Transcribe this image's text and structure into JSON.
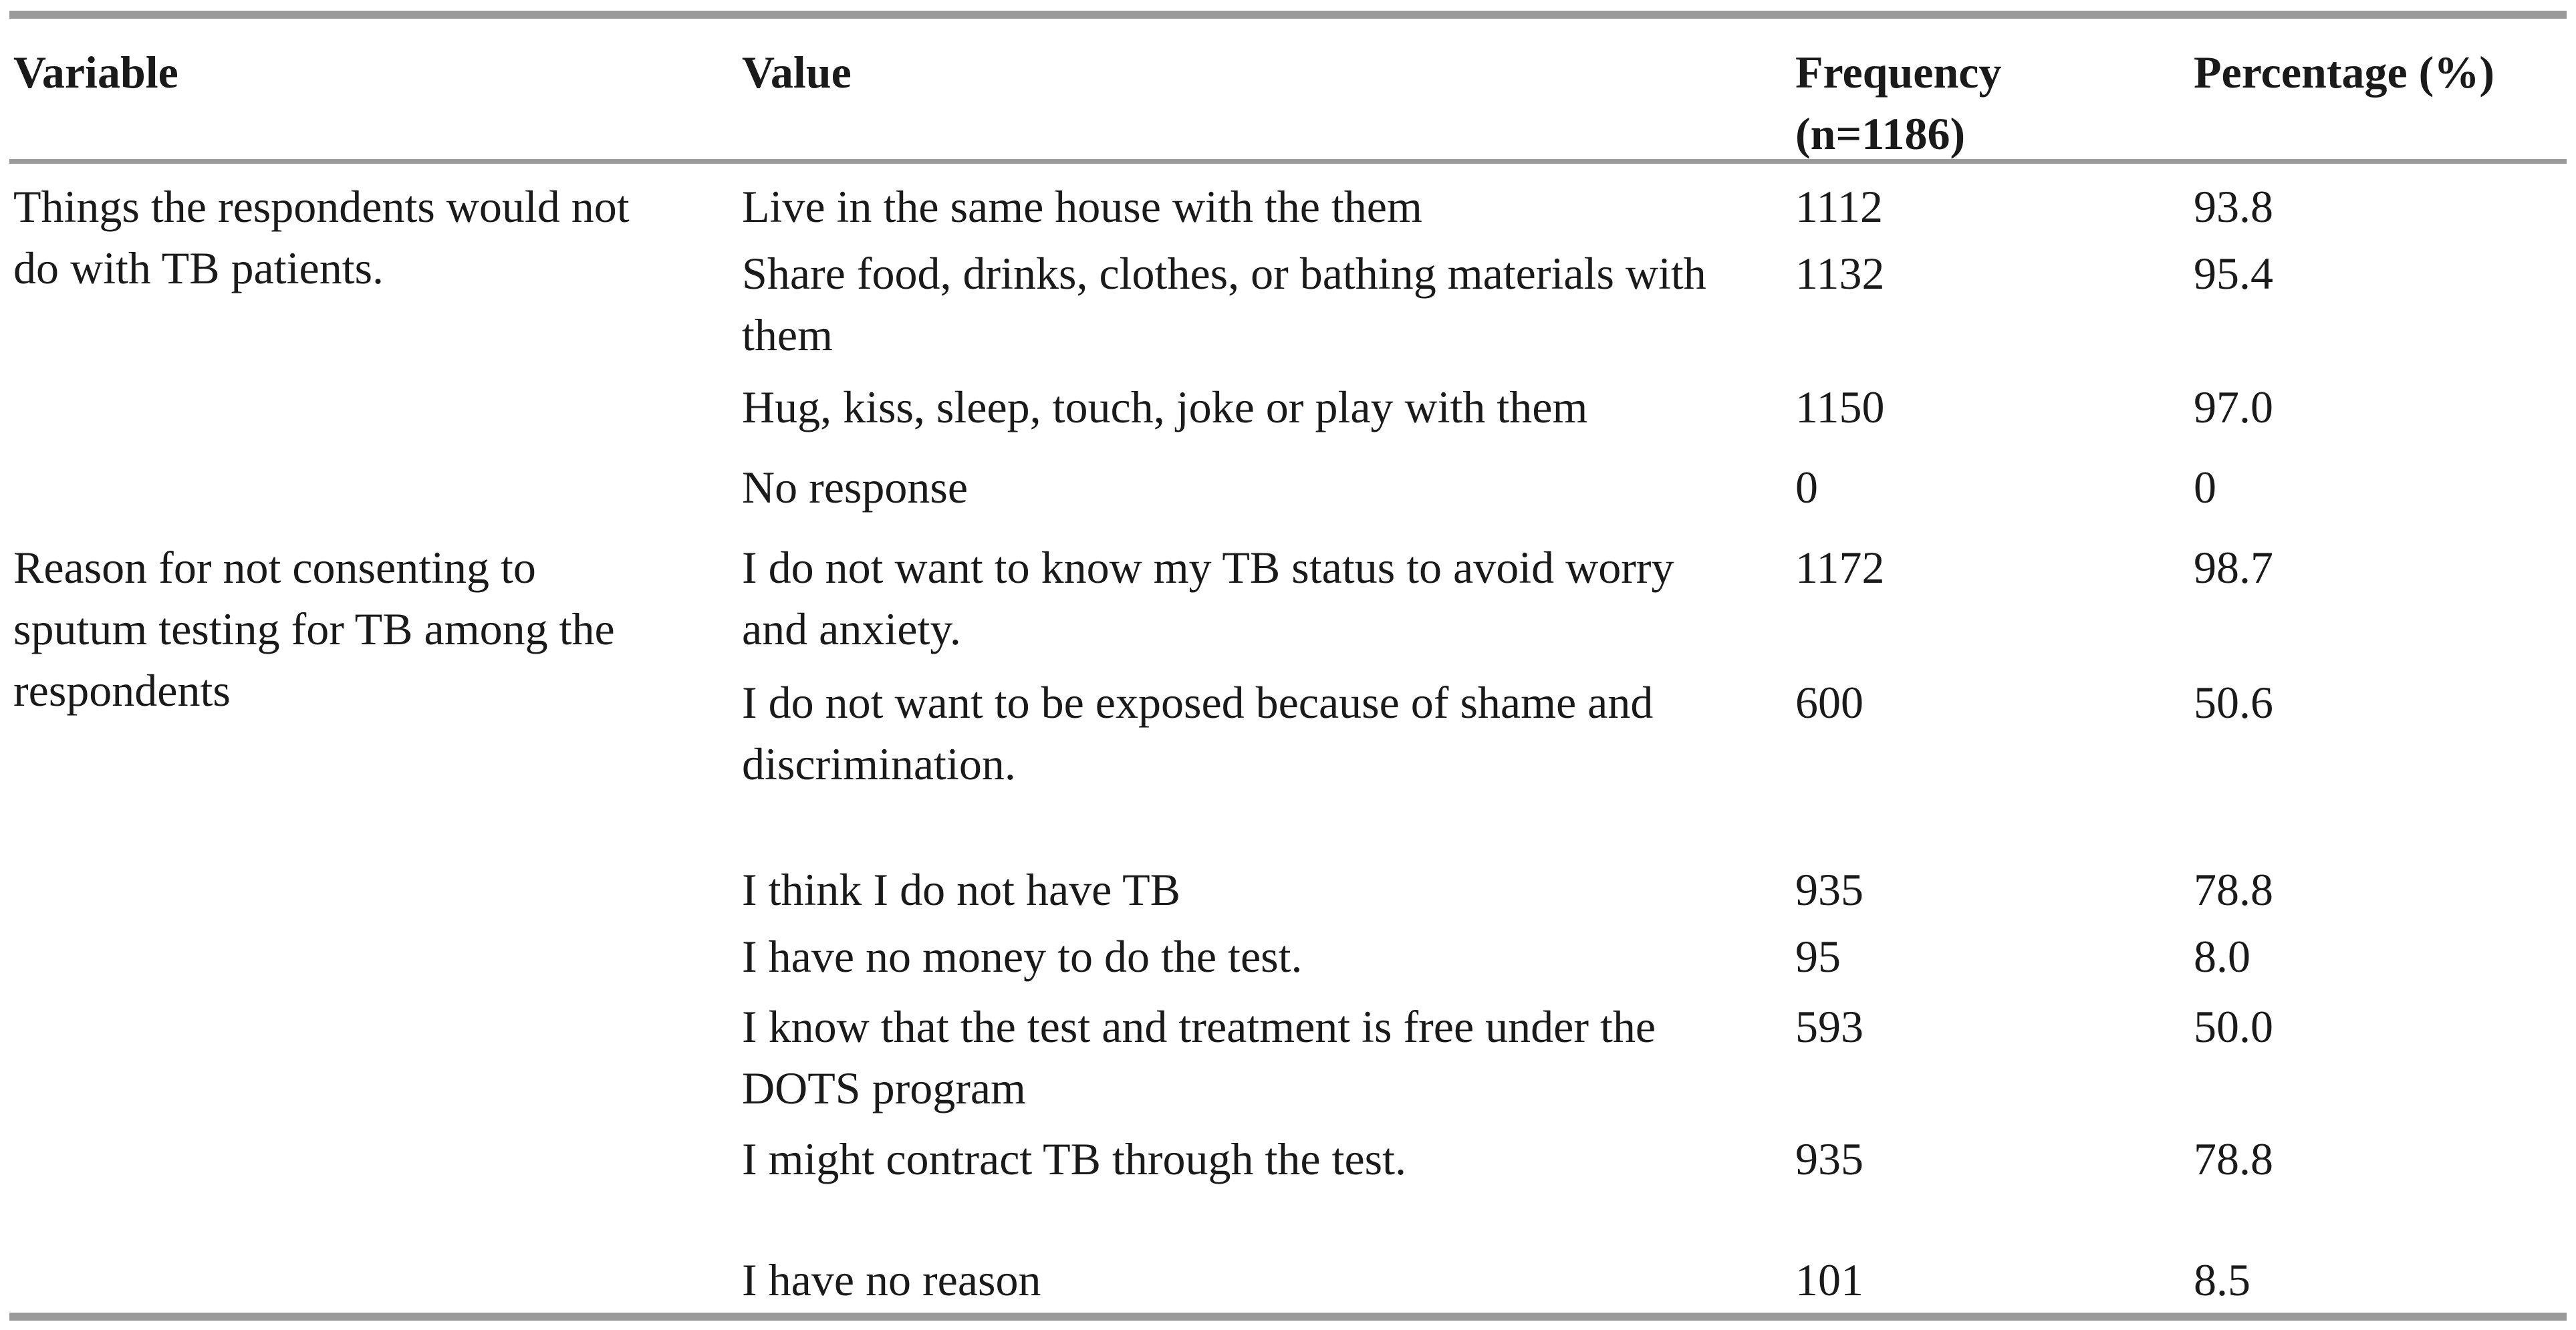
{
  "table": {
    "headers": {
      "variable": "Variable",
      "value": "Value",
      "frequency_line1": "Frequency",
      "frequency_line2": "(n=1186)",
      "percentage": "Percentage (%)"
    },
    "groups": [
      {
        "variable_lines": [
          "Things the respondents would not",
          "do with TB patients."
        ]
      },
      {
        "variable_lines": [
          "Reason for not consenting to",
          "sputum testing for TB among the",
          "respondents"
        ]
      }
    ],
    "rows": [
      {
        "value_lines": [
          "Live in the same house with the them"
        ],
        "frequency": "1112",
        "percentage": "93.8"
      },
      {
        "value_lines": [
          "Share food, drinks, clothes, or bathing materials with",
          "them"
        ],
        "frequency": "1132",
        "percentage": "95.4"
      },
      {
        "value_lines": [
          "Hug, kiss, sleep, touch, joke or play with them"
        ],
        "frequency": "1150",
        "percentage": "97.0"
      },
      {
        "value_lines": [
          "No response"
        ],
        "frequency": "0",
        "percentage": "0"
      },
      {
        "value_lines": [
          "I do not want to know my TB status to avoid worry",
          "and anxiety."
        ],
        "frequency": "1172",
        "percentage": "98.7"
      },
      {
        "value_lines": [
          "I do not want to be exposed because of shame and",
          "discrimination."
        ],
        "frequency": "600",
        "percentage": "50.6"
      },
      {
        "value_lines": [
          "I think I do not have TB"
        ],
        "frequency": "935",
        "percentage": "78.8"
      },
      {
        "value_lines": [
          "I have no money to do the test."
        ],
        "frequency": "95",
        "percentage": "8.0"
      },
      {
        "value_lines": [
          "I know that the test and treatment is free under the",
          "DOTS program"
        ],
        "frequency": "593",
        "percentage": "50.0"
      },
      {
        "value_lines": [
          "I might contract TB through the test."
        ],
        "frequency": "935",
        "percentage": "78.8"
      },
      {
        "value_lines": [
          "I have no reason"
        ],
        "frequency": "101",
        "percentage": "8.5"
      }
    ]
  }
}
